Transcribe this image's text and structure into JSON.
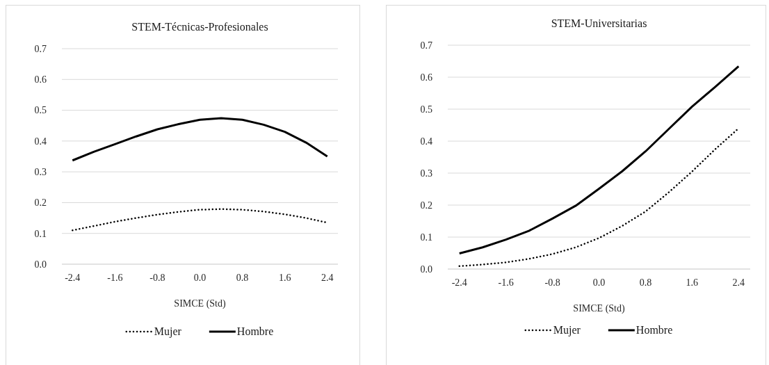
{
  "chart_data": [
    {
      "type": "line",
      "title": "STEM-Técnicas-Profesionales",
      "xlabel": "SIMCE  (Std)",
      "x": [
        -2.4,
        -2.0,
        -1.6,
        -1.2,
        -0.8,
        -0.4,
        0.0,
        0.4,
        0.8,
        1.2,
        1.6,
        2.0,
        2.4
      ],
      "xlim": [
        -2.6,
        2.6
      ],
      "xticks": [
        -2.4,
        -1.6,
        -0.8,
        {
          "value": 0,
          "label": "0.0"
        },
        0.8,
        1.6,
        2.4
      ],
      "ylim": [
        0,
        0.7
      ],
      "yticks": [
        {
          "value": 0,
          "label": "0.0"
        },
        0.1,
        0.2,
        0.3,
        0.4,
        0.5,
        0.6,
        0.7
      ],
      "grid": "y",
      "legend": "bottom",
      "series": [
        {
          "name": "Mujer",
          "color": "#000000",
          "line_style": "dotted",
          "values": [
            0.11,
            0.124,
            0.138,
            0.15,
            0.161,
            0.17,
            0.177,
            0.179,
            0.177,
            0.171,
            0.162,
            0.15,
            0.135
          ]
        },
        {
          "name": "Hombre",
          "color": "#000000",
          "line_style": "solid",
          "values": [
            0.337,
            0.365,
            0.39,
            0.415,
            0.438,
            0.455,
            0.469,
            0.474,
            0.469,
            0.453,
            0.43,
            0.395,
            0.35
          ]
        }
      ]
    },
    {
      "type": "line",
      "title": "STEM-Universitarias",
      "xlabel": "SIMCE  (Std)",
      "x": [
        -2.4,
        -2.0,
        -1.6,
        -1.2,
        -0.8,
        -0.4,
        0.0,
        0.4,
        0.8,
        1.2,
        1.6,
        2.0,
        2.4
      ],
      "xlim": [
        -2.6,
        2.6
      ],
      "xticks": [
        -2.4,
        -1.6,
        -0.8,
        {
          "value": 0,
          "label": "0.0"
        },
        0.8,
        1.6,
        2.4
      ],
      "ylim": [
        0,
        0.7
      ],
      "yticks": [
        {
          "value": 0,
          "label": "0.0"
        },
        0.1,
        0.2,
        0.3,
        0.4,
        0.5,
        0.6,
        0.7
      ],
      "grid": "y",
      "legend": "bottom",
      "series": [
        {
          "name": "Mujer",
          "color": "#000000",
          "line_style": "dotted",
          "values": [
            0.009,
            0.014,
            0.021,
            0.032,
            0.047,
            0.068,
            0.097,
            0.135,
            0.18,
            0.24,
            0.305,
            0.375,
            0.44
          ]
        },
        {
          "name": "Hombre",
          "color": "#000000",
          "line_style": "solid",
          "values": [
            0.049,
            0.068,
            0.092,
            0.12,
            0.158,
            0.198,
            0.251,
            0.306,
            0.368,
            0.438,
            0.508,
            0.57,
            0.634
          ]
        }
      ]
    }
  ]
}
